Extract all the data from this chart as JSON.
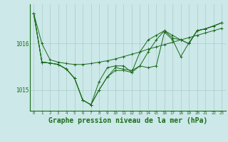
{
  "background_color": "#cce8e8",
  "grid_color": "#aacccc",
  "line_color": "#1a6b1a",
  "xlabel": "Graphe pression niveau de la mer (hPa)",
  "xlabel_fontsize": 7,
  "ytick_labels": [
    "1015",
    "1016"
  ],
  "ytick_vals": [
    1015.0,
    1016.0
  ],
  "xlim": [
    -0.5,
    23.5
  ],
  "ylim": [
    1014.55,
    1016.85
  ],
  "series": [
    [
      1016.65,
      1016.0,
      1015.65,
      1015.6,
      1015.57,
      1015.55,
      1015.55,
      1015.57,
      1015.6,
      1015.63,
      1015.67,
      1015.72,
      1015.77,
      1015.82,
      1015.88,
      1015.93,
      1015.98,
      1016.03,
      1016.08,
      1016.13,
      1016.18,
      1016.23,
      1016.28,
      1016.33
    ],
    [
      1016.65,
      1015.6,
      1015.58,
      1015.55,
      1015.45,
      1015.25,
      1014.78,
      1014.68,
      1015.0,
      1015.28,
      1015.48,
      1015.45,
      1015.42,
      1015.52,
      1015.48,
      1015.52,
      1016.25,
      1016.08,
      1015.72,
      1016.02,
      1016.28,
      1016.32,
      1016.38,
      1016.45
    ],
    [
      1016.65,
      1015.6,
      1015.58,
      1015.55,
      1015.45,
      1015.25,
      1014.78,
      1014.68,
      1015.18,
      1015.48,
      1015.52,
      1015.52,
      1015.38,
      1015.52,
      1015.82,
      1016.08,
      1016.28,
      1016.18,
      1016.08,
      1016.0,
      1016.28,
      1016.32,
      1016.38,
      1016.45
    ],
    [
      1016.65,
      1015.6,
      1015.58,
      1015.55,
      1015.45,
      1015.25,
      1014.78,
      1014.68,
      1015.0,
      1015.28,
      1015.42,
      1015.42,
      1015.38,
      1015.82,
      1016.08,
      1016.18,
      1016.28,
      1016.12,
      1016.08,
      1016.0,
      1016.28,
      1016.32,
      1016.38,
      1016.45
    ]
  ]
}
